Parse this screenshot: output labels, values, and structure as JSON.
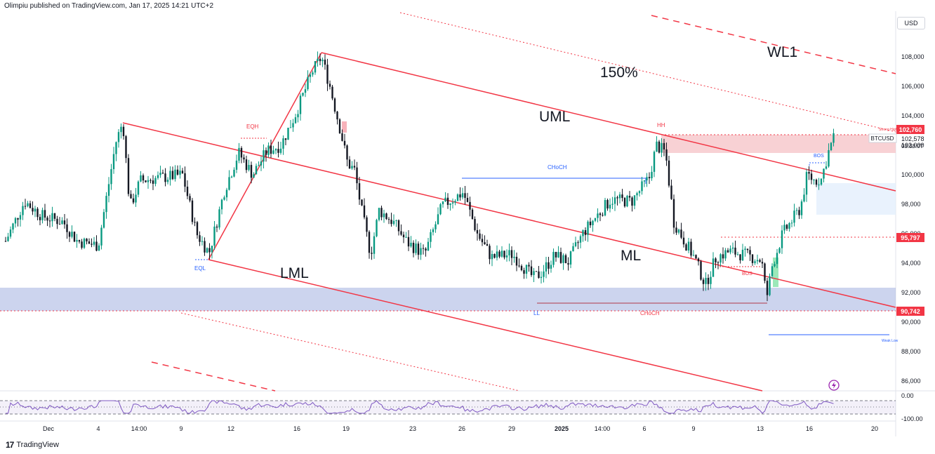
{
  "header": {
    "published": "Olimpiu published on TradingView.com, Jan 17, 2025 14:21 UTC+2"
  },
  "footer": {
    "brand": "TradingView",
    "logo_glyph": "17"
  },
  "scale_button": {
    "label": "USD"
  },
  "chart_data": {
    "type": "candlestick",
    "symbol": "BTCUSD",
    "currency": "USD",
    "ylim": [
      84500,
      111000
    ],
    "y_ticks": [
      86000,
      88000,
      90000,
      92000,
      94000,
      96000,
      98000,
      100000,
      102000,
      104000,
      106000,
      108000
    ],
    "y_tick_labels": [
      "86,000",
      "88,000",
      "90,000",
      "92,000",
      "94,000",
      "96,000",
      "98,000",
      "100,000",
      "102,000",
      "104,000",
      "106,000",
      "108,000"
    ],
    "x_tick_labels": [
      "Dec",
      "4",
      "14:00",
      "9",
      "12",
      "16",
      "19",
      "23",
      "26",
      "29",
      "2025",
      "14:00",
      "6",
      "9",
      "13",
      "16",
      "20"
    ],
    "price_labels": [
      {
        "value": "102,760",
        "color": "#f23645"
      },
      {
        "value": "95,797",
        "color": "#f23645"
      },
      {
        "value": "90,742",
        "color": "#f23645"
      }
    ],
    "last_price": {
      "symbol": "BTCUSD",
      "value": "102,578",
      "countdown": "03:38:07"
    },
    "pitchfork_lines": [
      "UML",
      "ML",
      "LML"
    ],
    "pitchfork_levels": [
      "150%",
      "WL1"
    ],
    "structure_labels": [
      "EQH",
      "EQL",
      "HH",
      "CHoCH",
      "CHoCH",
      "BOS",
      "BOS",
      "LL",
      "Weak Low",
      "Strong High"
    ],
    "rsi": {
      "ylim": [
        -100,
        0
      ],
      "tick_labels": [
        "0.00",
        "-100.00"
      ]
    },
    "colors": {
      "bull": "#089981",
      "bear": "#131722",
      "trend": "#f23645",
      "zone_blue": "#9aa9dd",
      "zone_red": "#f7c9cc"
    }
  }
}
